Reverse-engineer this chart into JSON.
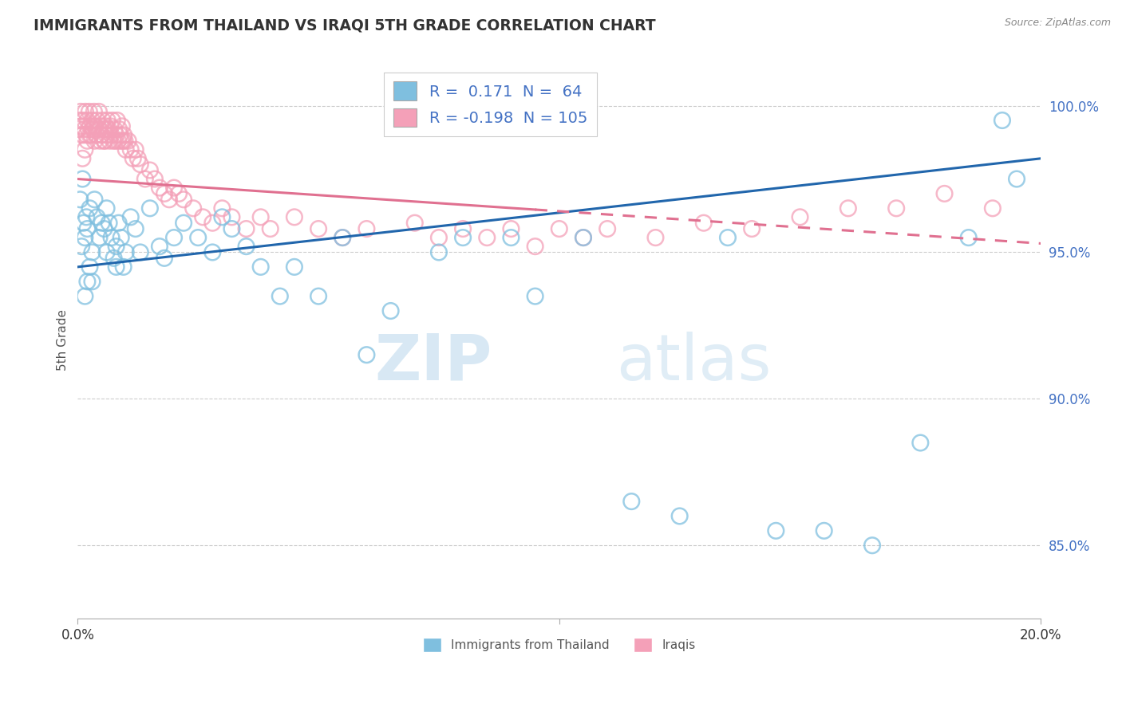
{
  "title": "IMMIGRANTS FROM THAILAND VS IRAQI 5TH GRADE CORRELATION CHART",
  "source": "Source: ZipAtlas.com",
  "ylabel": "5th Grade",
  "xlim": [
    0.0,
    20.0
  ],
  "ylim": [
    82.5,
    101.5
  ],
  "yticks": [
    85.0,
    90.0,
    95.0,
    100.0
  ],
  "blue_R": 0.171,
  "blue_N": 64,
  "pink_R": -0.198,
  "pink_N": 105,
  "blue_color": "#7fbfdf",
  "pink_color": "#f4a0b8",
  "blue_line_color": "#2166ac",
  "pink_line_color": "#e07090",
  "legend_labels": [
    "Immigrants from Thailand",
    "Iraqis"
  ],
  "blue_line_x0": 0.0,
  "blue_line_y0": 94.5,
  "blue_line_x1": 20.0,
  "blue_line_y1": 98.2,
  "pink_line_x0": 0.0,
  "pink_line_y0": 97.5,
  "pink_line_x1": 20.0,
  "pink_line_y1": 95.3,
  "pink_solid_end": 9.5,
  "blue_scatter_x": [
    0.05,
    0.08,
    0.1,
    0.12,
    0.15,
    0.18,
    0.2,
    0.25,
    0.3,
    0.35,
    0.4,
    0.45,
    0.5,
    0.55,
    0.6,
    0.65,
    0.7,
    0.75,
    0.8,
    0.85,
    0.9,
    0.95,
    1.0,
    1.1,
    1.2,
    1.3,
    1.5,
    1.7,
    1.8,
    2.0,
    2.2,
    2.5,
    2.8,
    3.0,
    3.2,
    3.5,
    3.8,
    4.2,
    4.5,
    5.0,
    5.5,
    6.0,
    6.5,
    7.5,
    8.0,
    9.0,
    9.5,
    10.5,
    11.5,
    12.5,
    13.5,
    14.5,
    15.5,
    16.5,
    17.5,
    18.5,
    19.2,
    19.5,
    0.15,
    0.2,
    0.25,
    0.3,
    0.6,
    0.8
  ],
  "blue_scatter_y": [
    96.8,
    95.2,
    97.5,
    96.0,
    95.5,
    96.2,
    95.8,
    96.5,
    95.0,
    96.8,
    96.2,
    95.5,
    96.0,
    95.8,
    96.5,
    96.0,
    95.5,
    94.8,
    95.2,
    96.0,
    95.5,
    94.5,
    95.0,
    96.2,
    95.8,
    95.0,
    96.5,
    95.2,
    94.8,
    95.5,
    96.0,
    95.5,
    95.0,
    96.2,
    95.8,
    95.2,
    94.5,
    93.5,
    94.5,
    93.5,
    95.5,
    91.5,
    93.0,
    95.0,
    95.5,
    95.5,
    93.5,
    95.5,
    86.5,
    86.0,
    95.5,
    85.5,
    85.5,
    85.0,
    88.5,
    95.5,
    99.5,
    97.5,
    93.5,
    94.0,
    94.5,
    94.0,
    95.0,
    94.5
  ],
  "pink_scatter_x": [
    0.02,
    0.04,
    0.06,
    0.08,
    0.1,
    0.12,
    0.14,
    0.16,
    0.18,
    0.2,
    0.22,
    0.24,
    0.26,
    0.28,
    0.3,
    0.32,
    0.34,
    0.36,
    0.38,
    0.4,
    0.42,
    0.44,
    0.46,
    0.48,
    0.5,
    0.52,
    0.54,
    0.56,
    0.58,
    0.6,
    0.62,
    0.64,
    0.66,
    0.68,
    0.7,
    0.72,
    0.74,
    0.76,
    0.78,
    0.8,
    0.82,
    0.84,
    0.86,
    0.88,
    0.9,
    0.92,
    0.94,
    0.96,
    0.98,
    1.0,
    1.05,
    1.1,
    1.15,
    1.2,
    1.25,
    1.3,
    1.4,
    1.5,
    1.6,
    1.7,
    1.8,
    1.9,
    2.0,
    2.1,
    2.2,
    2.4,
    2.6,
    2.8,
    3.0,
    3.2,
    3.5,
    3.8,
    4.0,
    4.5,
    5.0,
    5.5,
    6.0,
    7.0,
    7.5,
    8.0,
    8.5,
    9.0,
    9.5,
    10.0,
    10.5,
    11.0,
    12.0,
    13.0,
    14.0,
    15.0,
    16.0,
    17.0,
    18.0,
    19.0,
    0.1,
    0.15,
    0.2,
    0.25,
    0.3,
    0.35,
    0.4,
    0.45,
    0.5,
    0.55,
    0.6
  ],
  "pink_scatter_y": [
    99.2,
    99.5,
    99.8,
    99.3,
    99.0,
    99.5,
    99.2,
    99.8,
    99.0,
    99.5,
    99.2,
    99.8,
    99.3,
    99.0,
    99.5,
    99.2,
    99.8,
    99.3,
    99.0,
    99.5,
    99.2,
    99.8,
    98.8,
    99.3,
    99.0,
    99.5,
    99.2,
    98.8,
    99.3,
    99.0,
    99.5,
    99.2,
    98.8,
    99.3,
    99.0,
    99.5,
    98.8,
    99.2,
    98.8,
    99.0,
    99.5,
    98.8,
    99.2,
    99.0,
    98.8,
    99.3,
    98.8,
    99.0,
    98.8,
    98.5,
    98.8,
    98.5,
    98.2,
    98.5,
    98.2,
    98.0,
    97.5,
    97.8,
    97.5,
    97.2,
    97.0,
    96.8,
    97.2,
    97.0,
    96.8,
    96.5,
    96.2,
    96.0,
    96.5,
    96.2,
    95.8,
    96.2,
    95.8,
    96.2,
    95.8,
    95.5,
    95.8,
    96.0,
    95.5,
    95.8,
    95.5,
    95.8,
    95.2,
    95.8,
    95.5,
    95.8,
    95.5,
    96.0,
    95.8,
    96.2,
    96.5,
    96.5,
    97.0,
    96.5,
    98.2,
    98.5,
    98.8,
    99.0,
    99.2,
    98.8,
    99.0,
    99.2,
    99.0,
    98.8,
    99.2
  ]
}
